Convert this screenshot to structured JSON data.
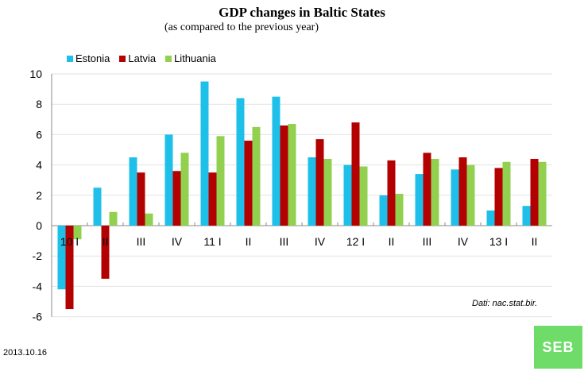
{
  "chart_data": {
    "type": "bar",
    "title": "GDP changes in Baltic States",
    "subtitle": "(as compared to the previous year)",
    "categories": [
      "10 I",
      "II",
      "III",
      "IV",
      "11 I",
      "II",
      "III",
      "IV",
      "12 I",
      "II",
      "III",
      "IV",
      "13 I",
      "II"
    ],
    "series": [
      {
        "name": "Estonia",
        "color": "#1ec0ea",
        "values": [
          -4.2,
          2.5,
          4.5,
          6.0,
          9.5,
          8.4,
          8.5,
          4.5,
          4.0,
          2.0,
          3.4,
          3.7,
          1.0,
          1.3
        ]
      },
      {
        "name": "Latvia",
        "color": "#b30000",
        "values": [
          -5.5,
          -3.5,
          3.5,
          3.6,
          3.5,
          5.6,
          6.6,
          5.7,
          6.8,
          4.3,
          4.8,
          4.5,
          3.8,
          4.4
        ]
      },
      {
        "name": "Lithuania",
        "color": "#92d050",
        "values": [
          -0.9,
          0.9,
          0.8,
          4.8,
          5.9,
          6.5,
          6.7,
          4.4,
          3.9,
          2.1,
          4.4,
          4.0,
          4.2,
          4.2
        ]
      }
    ],
    "ylim": [
      -6,
      10
    ],
    "yticks": [
      -6,
      -4,
      -2,
      0,
      2,
      4,
      6,
      8,
      10
    ],
    "grid": true,
    "legend_placement": "top-left",
    "source": "Dati: nac.stat.bir."
  },
  "date": "2013.10.16",
  "logo_text": "SEB"
}
